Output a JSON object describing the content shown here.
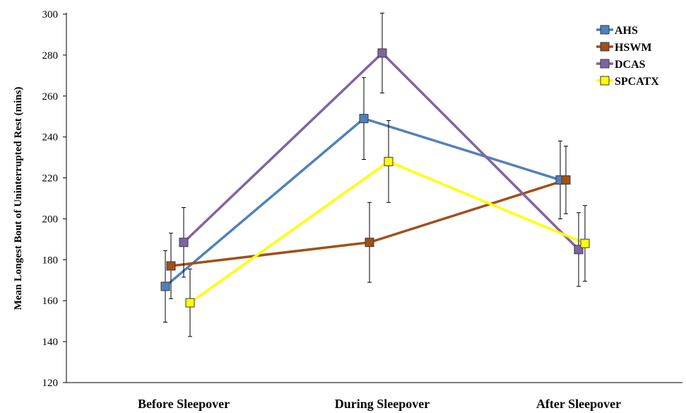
{
  "chart_data": {
    "type": "line",
    "title": "",
    "xlabel": "",
    "ylabel": "Mean Longest Bout of Uninterrupted Rest (mins)",
    "categories": [
      "Before Sleepover",
      "During Sleepover",
      "After Sleepover"
    ],
    "ylim": [
      120,
      300
    ],
    "yticks": [
      120,
      140,
      160,
      180,
      200,
      220,
      240,
      260,
      280,
      300
    ],
    "grid": false,
    "legend_position": "top-right",
    "series": [
      {
        "name": "AHS",
        "color": "#4f81bd",
        "values": [
          167,
          249,
          219
        ],
        "errors": [
          17.5,
          20,
          19
        ]
      },
      {
        "name": "HSWM",
        "color": "#a0501a",
        "values": [
          177,
          188.5,
          219
        ],
        "errors": [
          16,
          19.5,
          16.5
        ]
      },
      {
        "name": "DCAS",
        "color": "#8064a2",
        "values": [
          188.5,
          281,
          185
        ],
        "errors": [
          17,
          19.5,
          18
        ]
      },
      {
        "name": "SPCATX",
        "color": "#ffff00",
        "values": [
          159,
          228,
          188
        ],
        "errors": [
          16.5,
          20,
          18.5
        ]
      }
    ]
  }
}
